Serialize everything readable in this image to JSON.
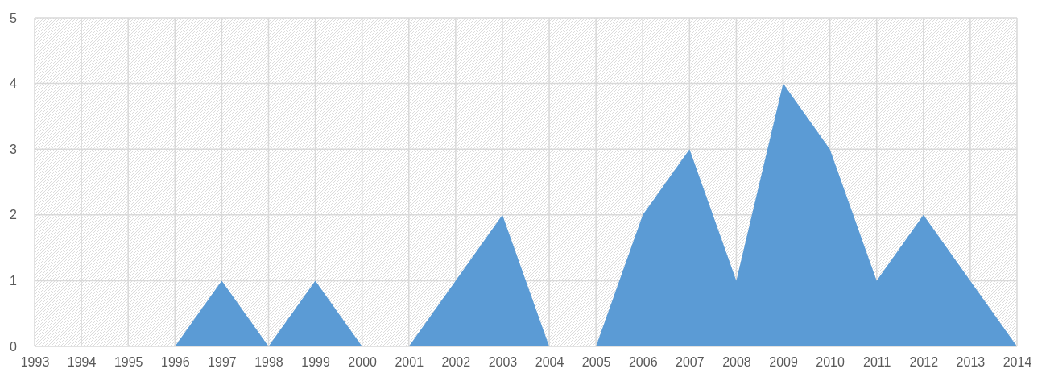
{
  "chart_data": {
    "type": "area",
    "categories": [
      "1993",
      "1994",
      "1995",
      "1996",
      "1997",
      "1998",
      "1999",
      "2000",
      "2001",
      "2002",
      "2003",
      "2004",
      "2005",
      "2006",
      "2007",
      "2008",
      "2009",
      "2010",
      "2011",
      "2012",
      "2013",
      "2014"
    ],
    "series": [
      {
        "color": "#5b9bd5",
        "values": [
          0,
          0,
          0,
          0,
          1,
          0,
          1,
          0,
          0,
          1,
          2,
          0,
          0,
          2,
          3,
          1,
          4,
          3,
          1,
          2,
          1,
          0
        ]
      }
    ],
    "ylim": [
      0,
      5
    ],
    "yticks": [
      0,
      1,
      2,
      3,
      4,
      5
    ],
    "grid": true
  }
}
